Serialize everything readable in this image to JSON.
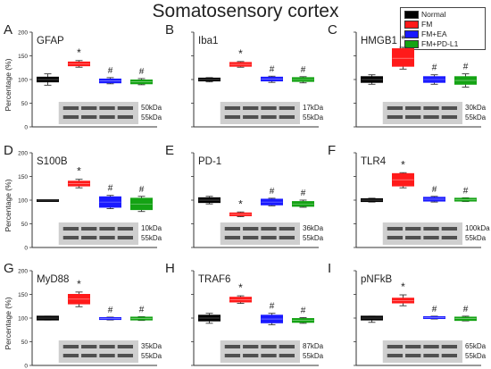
{
  "title": "Somatosensory cortex",
  "legend": [
    {
      "label": "Normal",
      "color": "#000000"
    },
    {
      "label": "FM",
      "color": "#ff1a1a"
    },
    {
      "label": "FM+EA",
      "color": "#1a1aff"
    },
    {
      "label": "FM+PD-L1",
      "color": "#14a314"
    }
  ],
  "y_axis_label": "Percentage (%)",
  "y_ticks": [
    "0",
    "50",
    "100",
    "150",
    "200"
  ],
  "chart_data": [
    {
      "letter": "A",
      "protein": "GFAP",
      "type": "bar",
      "ylim": [
        0,
        200
      ],
      "groups": [
        "Normal",
        "FM",
        "FM+EA",
        "FM+PD-L1"
      ],
      "values": [
        100,
        133,
        97,
        95
      ],
      "box_lo": [
        95,
        129,
        93,
        91
      ],
      "box_hi": [
        105,
        137,
        101,
        99
      ],
      "err_lo": [
        88,
        126,
        91,
        89
      ],
      "err_hi": [
        112,
        140,
        104,
        102
      ],
      "markers": [
        "",
        "*",
        "#",
        "#"
      ],
      "kda": [
        "50kDa",
        "55kDa"
      ]
    },
    {
      "letter": "B",
      "protein": "Iba1",
      "type": "bar",
      "ylim": [
        0,
        200
      ],
      "groups": [
        "Normal",
        "FM",
        "FM+EA",
        "FM+PD-L1"
      ],
      "values": [
        100,
        132,
        101,
        100
      ],
      "box_lo": [
        97,
        128,
        97,
        96
      ],
      "box_hi": [
        103,
        136,
        105,
        104
      ],
      "err_lo": [
        95,
        126,
        94,
        93
      ],
      "err_hi": [
        104,
        138,
        107,
        106
      ],
      "markers": [
        "",
        "*",
        "#",
        "#"
      ],
      "kda": [
        "17kDa",
        "55kDa"
      ]
    },
    {
      "letter": "C",
      "protein": "HMGB1",
      "type": "bar",
      "ylim": [
        0,
        200
      ],
      "groups": [
        "Normal",
        "FM",
        "FM+EA",
        "FM+PD-L1"
      ],
      "values": [
        100,
        145,
        100,
        98
      ],
      "box_lo": [
        94,
        128,
        94,
        90
      ],
      "box_hi": [
        106,
        165,
        106,
        106
      ],
      "err_lo": [
        90,
        122,
        90,
        84
      ],
      "err_hi": [
        110,
        168,
        110,
        112
      ],
      "markers": [
        "",
        "*",
        "#",
        "#"
      ],
      "kda": [
        "30kDa",
        "55kDa"
      ]
    },
    {
      "letter": "D",
      "protein": "S100B",
      "type": "bar",
      "ylim": [
        0,
        200
      ],
      "groups": [
        "Normal",
        "FM",
        "FM+EA",
        "FM+PD-L1"
      ],
      "values": [
        100,
        135,
        96,
        92
      ],
      "box_lo": [
        99,
        130,
        85,
        80
      ],
      "box_hi": [
        101,
        140,
        107,
        104
      ],
      "err_lo": [
        99,
        126,
        82,
        76
      ],
      "err_hi": [
        101,
        144,
        110,
        108
      ],
      "markers": [
        "",
        "*",
        "#",
        "#"
      ],
      "kda": [
        "10kDa",
        "55kDa"
      ]
    },
    {
      "letter": "E",
      "protein": "PD-1",
      "type": "bar",
      "ylim": [
        0,
        200
      ],
      "groups": [
        "Normal",
        "FM",
        "FM+EA",
        "FM+PD-L1"
      ],
      "values": [
        100,
        70,
        96,
        92
      ],
      "box_lo": [
        95,
        67,
        90,
        87
      ],
      "box_hi": [
        105,
        73,
        102,
        97
      ],
      "err_lo": [
        92,
        65,
        88,
        85
      ],
      "err_hi": [
        108,
        75,
        104,
        100
      ],
      "markers": [
        "",
        "*",
        "#",
        "#"
      ],
      "kda": [
        "36kDa",
        "55kDa"
      ]
    },
    {
      "letter": "F",
      "protein": "TLR4",
      "type": "bar",
      "ylim": [
        0,
        200
      ],
      "groups": [
        "Normal",
        "FM",
        "FM+EA",
        "FM+PD-L1"
      ],
      "values": [
        100,
        143,
        102,
        101
      ],
      "box_lo": [
        97,
        130,
        98,
        98
      ],
      "box_hi": [
        103,
        156,
        106,
        104
      ],
      "err_lo": [
        96,
        126,
        96,
        97
      ],
      "err_hi": [
        104,
        158,
        108,
        105
      ],
      "markers": [
        "",
        "*",
        "#",
        "#"
      ],
      "kda": [
        "100kDa",
        "55kDa"
      ]
    },
    {
      "letter": "G",
      "protein": "MyD88",
      "type": "bar",
      "ylim": [
        0,
        200
      ],
      "groups": [
        "Normal",
        "FM",
        "FM+EA",
        "FM+PD-L1"
      ],
      "values": [
        100,
        140,
        99,
        99
      ],
      "box_lo": [
        96,
        130,
        97,
        96
      ],
      "box_hi": [
        104,
        150,
        101,
        102
      ],
      "err_lo": [
        96,
        124,
        96,
        95
      ],
      "err_hi": [
        104,
        155,
        102,
        103
      ],
      "markers": [
        "",
        "*",
        "#",
        "#"
      ],
      "kda": [
        "35kDa",
        "55kDa"
      ]
    },
    {
      "letter": "H",
      "protein": "TRAF6",
      "type": "bar",
      "ylim": [
        0,
        200
      ],
      "groups": [
        "Normal",
        "FM",
        "FM+EA",
        "FM+PD-L1"
      ],
      "values": [
        100,
        139,
        98,
        95
      ],
      "box_lo": [
        94,
        134,
        90,
        91
      ],
      "box_hi": [
        106,
        144,
        106,
        99
      ],
      "err_lo": [
        89,
        131,
        86,
        89
      ],
      "err_hi": [
        110,
        147,
        110,
        101
      ],
      "markers": [
        "",
        "*",
        "#",
        "#"
      ],
      "kda": [
        "87kDa",
        "55kDa"
      ]
    },
    {
      "letter": "I",
      "protein": "pNFkB",
      "type": "bar",
      "ylim": [
        0,
        200
      ],
      "groups": [
        "Normal",
        "FM",
        "FM+EA",
        "FM+PD-L1"
      ],
      "values": [
        100,
        137,
        101,
        99
      ],
      "box_lo": [
        96,
        132,
        99,
        95
      ],
      "box_hi": [
        104,
        142,
        103,
        102
      ],
      "err_lo": [
        91,
        126,
        98,
        94
      ],
      "err_hi": [
        104,
        149,
        104,
        104
      ],
      "markers": [
        "",
        "*",
        "#",
        "#"
      ],
      "kda": [
        "65kDa",
        "55kDa"
      ]
    }
  ]
}
